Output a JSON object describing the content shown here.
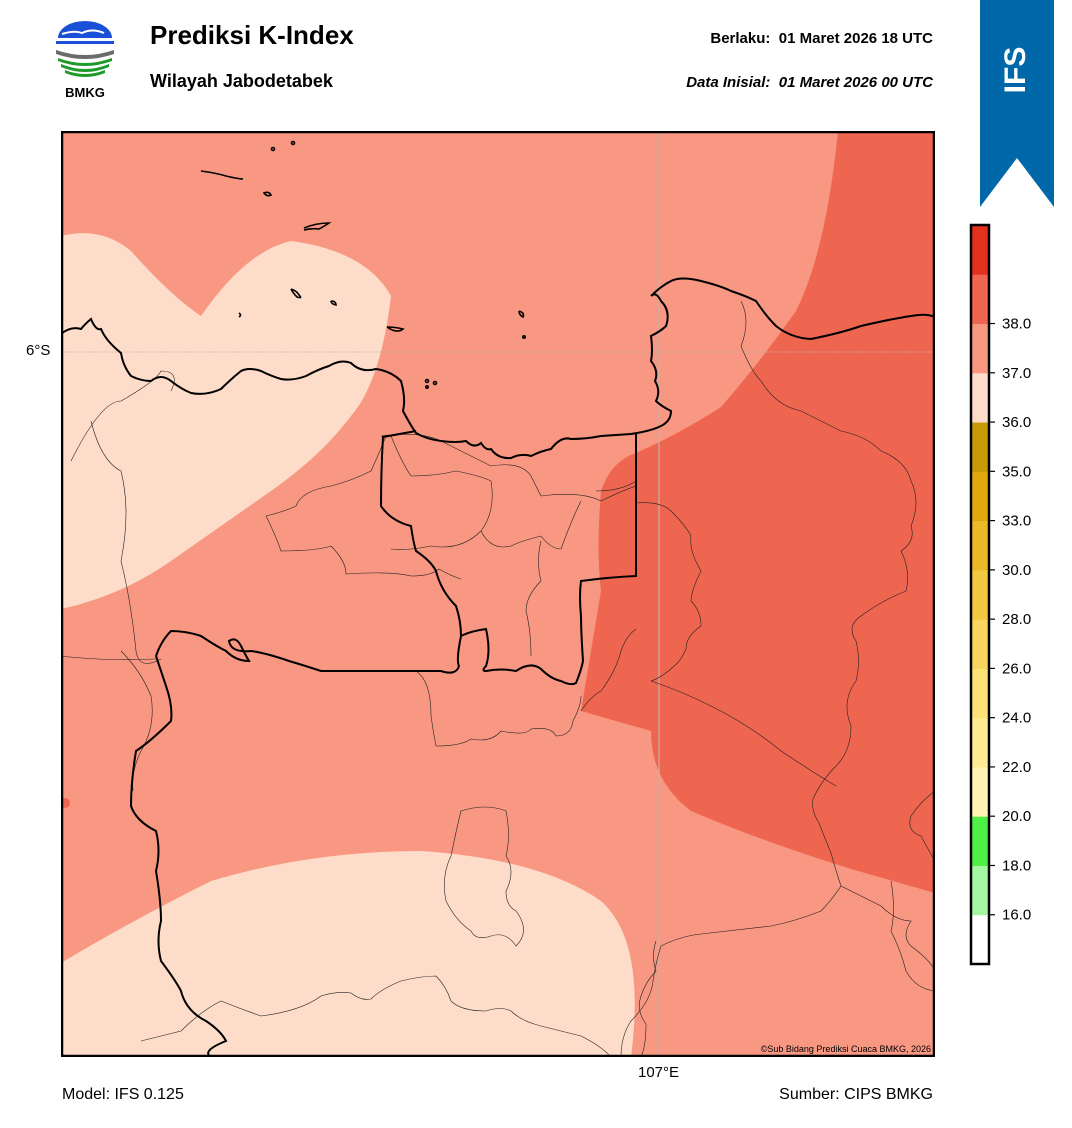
{
  "header": {
    "logo_text": "BMKG",
    "title": "Prediksi K-Index",
    "subtitle": "Wilayah Jabodetabek",
    "valid_label": "Berlaku:",
    "valid_time": "01 Maret 2026 18 UTC",
    "init_label": "Data Inisial:",
    "init_time": "01 Maret 2026 00 UTC"
  },
  "banner": {
    "text": "IFS",
    "color": "#0068a8"
  },
  "map": {
    "lat_label": "6°S",
    "lon_label": "107°E",
    "copyright": "©Sub Bidang Prediksi Cuaca BMKG, 2026",
    "colors": {
      "class_35_36": "#fddcc9",
      "class_36_37": "#f89782",
      "class_37_38": "#ef6650"
    }
  },
  "footer": {
    "model": "Model: IFS 0.125",
    "source": "Sumber: CIPS BMKG"
  },
  "colorbar": {
    "bins": [
      {
        "color": "#ffffff"
      },
      {
        "color": "#a4f7a0"
      },
      {
        "color": "#4ef046"
      },
      {
        "color": "#fff5b0"
      },
      {
        "color": "#ffeb91"
      },
      {
        "color": "#fde177"
      },
      {
        "color": "#f8d55f"
      },
      {
        "color": "#f2c842"
      },
      {
        "color": "#ecb928"
      },
      {
        "color": "#e0a80c"
      },
      {
        "color": "#c89a06"
      },
      {
        "color": "#fddcc9"
      },
      {
        "color": "#f89782"
      },
      {
        "color": "#ef6650"
      },
      {
        "color": "#e2321e"
      }
    ],
    "ticks": [
      "16.0",
      "18.0",
      "20.0",
      "22.0",
      "24.0",
      "26.0",
      "28.0",
      "30.0",
      "33.0",
      "35.0",
      "36.0",
      "37.0",
      "38.0"
    ]
  }
}
